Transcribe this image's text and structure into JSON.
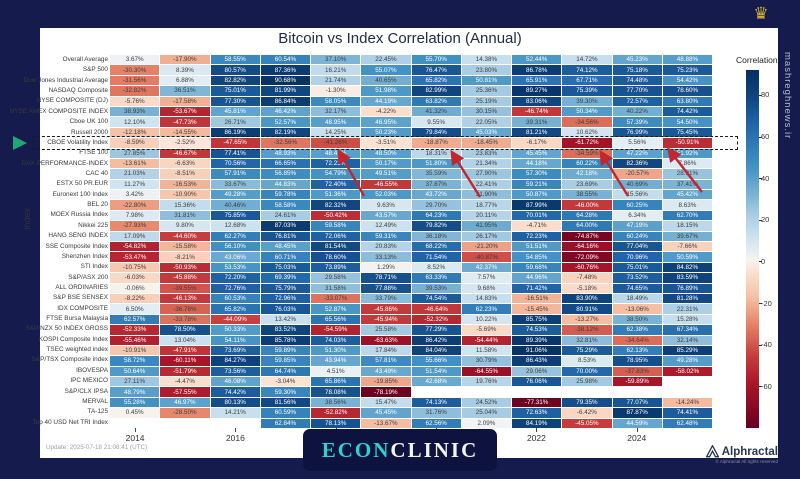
{
  "title": "Bitcoin vs Index Correlation (Annual)",
  "ylabel": "Index",
  "watermark": "mashreghnews.ir",
  "emblem_icon": "crown-icon",
  "colorbar": {
    "title": "Correlation",
    "ticks": [
      80,
      60,
      40,
      20,
      0,
      -20,
      -40,
      -60
    ],
    "vmax": 92,
    "vmin": -80
  },
  "footer": {
    "update": "Update: 2025-07-18 21:08:41 (UTC)",
    "brand_econ": "ECON",
    "brand_clinic": "CLINIC",
    "alphractal": "Alphractal",
    "alphractal_copy": "© Alphractal All rights reserved"
  },
  "chart_data": {
    "type": "heatmap",
    "x": [
      2014,
      2015,
      2016,
      2017,
      2018,
      2019,
      2020,
      2021,
      2022,
      2023,
      2024,
      2025
    ],
    "x_ticks_shown": [
      2014,
      2016,
      2018,
      2020,
      2022,
      2024
    ],
    "value_format": "percent",
    "highlight_row": "CBOE Volatility Index",
    "rows": [
      {
        "label": "Overall Average",
        "values": [
          3.67,
          -17.9,
          58.55,
          60.54,
          37.1,
          22.45,
          55.7,
          14.38,
          52.44,
          14.72,
          45.23,
          48.88
        ]
      },
      {
        "label": "S&P 500",
        "values": [
          -30.3,
          8.39,
          80.57,
          87.36,
          16.21,
          55.07,
          76.47,
          23.8,
          86.78,
          74.12,
          75.18,
          75.23
        ]
      },
      {
        "label": "Dow Jones Industrial Average",
        "values": [
          -31.56,
          6.88,
          82.82,
          90.68,
          21.74,
          40.65,
          65.82,
          50.81,
          65.91,
          67.71,
          74.48,
          54.42
        ]
      },
      {
        "label": "NASDAQ Composite",
        "values": [
          -32.82,
          36.51,
          75.01,
          81.99,
          -1.3,
          51.98,
          82.99,
          25.36,
          89.27,
          75.39,
          77.7,
          78.6
        ]
      },
      {
        "label": "NYSE COMPOSITE (DJ)",
        "values": [
          -5.76,
          -17.58,
          77.3,
          86.84,
          58.05,
          44.19,
          63.82,
          25.19,
          83.06,
          39.3,
          72.57,
          63.8
        ]
      },
      {
        "label": "NYSE AMEX COMPOSITE INDEX",
        "values": [
          38.93,
          -53.67,
          45.81,
          46.42,
          32.17,
          -4.22,
          41.32,
          30.15,
          -46.74,
          50.34,
          40.22,
          74.42
        ]
      },
      {
        "label": "Cboe UK 100",
        "values": [
          12.1,
          -47.73,
          26.71,
          52.57,
          48.95,
          46.95,
          9.55,
          22.05,
          39.31,
          -34.56,
          57.39,
          54.5
        ]
      },
      {
        "label": "Russell 2000",
        "values": [
          -12.18,
          -14.55,
          86.19,
          82.19,
          14.25,
          50.23,
          79.84,
          45.03,
          81.21,
          10.62,
          76.99,
          75.45
        ]
      },
      {
        "label": "CBOE Volatility Index",
        "values": [
          -8.59,
          -2.52,
          -47.65,
          -32.56,
          -41.26,
          -3.51,
          -18.87,
          -18.45,
          -6.17,
          -61.72,
          5.56,
          -50.91
        ]
      },
      {
        "label": "FTSE 100",
        "values": [
          27.85,
          -46.67,
          77.41,
          48.93,
          48.41,
          48.5,
          18.31,
          23.83,
          45.45,
          -34.59,
          47.22,
          51.92
        ]
      },
      {
        "label": "DAX PERFORMANCE-INDEX",
        "values": [
          -13.61,
          -6.63,
          70.56,
          66.65,
          72.23,
          50.17,
          51.8,
          21.34,
          44.18,
          60.22,
          82.36,
          7.86
        ]
      },
      {
        "label": "CAC 40",
        "values": [
          21.03,
          -8.51,
          57.91,
          56.85,
          54.79,
          49.51,
          35.59,
          27.9,
          57.3,
          42.18,
          -20.57,
          28.91
        ]
      },
      {
        "label": "ESTX 50 PR.EUR",
        "values": [
          11.27,
          -16.53,
          33.67,
          44.83,
          72.4,
          -46.55,
          37.87,
          22.41,
          59.21,
          23.69,
          40.69,
          37.41
        ]
      },
      {
        "label": "Euronext 100 Index",
        "values": [
          3.42,
          -10.9,
          49.28,
          59.78,
          51.36,
          52.03,
          43.72,
          31.9,
          50.87,
          38.55,
          15.56,
          45.42
        ]
      },
      {
        "label": "BEL 20",
        "values": [
          -22.8,
          15.36,
          40.46,
          58.58,
          82.32,
          9.63,
          29.7,
          18.77,
          87.99,
          -46.0,
          60.25,
          8.63
        ]
      },
      {
        "label": "MOEX Russia Index",
        "values": [
          7.98,
          31.81,
          75.85,
          24.61,
          -50.42,
          43.57,
          64.23,
          20.11,
          70.01,
          64.28,
          6.34,
          62.7
        ]
      },
      {
        "label": "Nikkei 225",
        "values": [
          -27.93,
          9.8,
          12.68,
          87.03,
          59.58,
          12.49,
          79.82,
          41.95,
          -4.71,
          64.0,
          47.19,
          18.15
        ]
      },
      {
        "label": "HANG SENG INDEX",
        "values": [
          17.09,
          -44.6,
          62.27,
          76.81,
          72.06,
          59.31,
          36.18,
          26.17,
          72.23,
          -74.87,
          60.24,
          39.67
        ]
      },
      {
        "label": "SSE Composite Index",
        "values": [
          -54.82,
          -15.58,
          56.1,
          48.45,
          81.54,
          20.83,
          68.22,
          -21.2,
          51.51,
          -64.16,
          77.04,
          -7.66
        ]
      },
      {
        "label": "Shenzhen Index",
        "values": [
          -53.47,
          -8.21,
          43.06,
          60.71,
          78.6,
          33.13,
          71.54,
          -40.87,
          54.85,
          -72.09,
          70.96,
          50.59
        ]
      },
      {
        "label": "STI Index",
        "values": [
          -10.75,
          -50.93,
          53.53,
          75.03,
          73.89,
          1.29,
          8.52,
          42.37,
          59.68,
          -60.76,
          75.01,
          84.82
        ]
      },
      {
        "label": "S&P/ASX 200",
        "values": [
          -6.03,
          -45.88,
          72.2,
          69.39,
          29.58,
          78.71,
          63.33,
          7.57,
          44.96,
          -7.48,
          73.52,
          83.59
        ]
      },
      {
        "label": "ALL ORDINARIES",
        "values": [
          -0.06,
          -39.55,
          72.76,
          75.79,
          31.58,
          77.88,
          39.53,
          9.68,
          71.42,
          -5.18,
          74.65,
          76.89
        ]
      },
      {
        "label": "S&P BSE SENSEX",
        "values": [
          -8.22,
          -46.13,
          60.53,
          72.96,
          -33.07,
          33.79,
          74.54,
          14.83,
          -16.51,
          83.9,
          18.49,
          81.28
        ]
      },
      {
        "label": "IDX COMPOSITE",
        "values": [
          6.5,
          -36.78,
          65.82,
          76.03,
          52.87,
          -45.86,
          -46.64,
          62.23,
          -15.45,
          80.91,
          -13.06,
          22.31
        ]
      },
      {
        "label": "FTSE Bursa Malaysia",
        "values": [
          62.57,
          -33.78,
          -44.09,
          13.42,
          65.56,
          -45.94,
          -52.32,
          10.22,
          85.75,
          -13.27,
          38.5,
          15.28
        ]
      },
      {
        "label": "S&P/NZX 50 INDEX GROSS",
        "values": [
          -52.33,
          78.5,
          50.33,
          83.52,
          -54.59,
          25.58,
          77.29,
          -5.69,
          74.53,
          -38.12,
          62.38,
          67.34
        ]
      },
      {
        "label": "KOSPI Composite Index",
        "values": [
          -55.46,
          13.04,
          54.11,
          85.78,
          74.03,
          -63.63,
          86.42,
          -54.44,
          89.39,
          32.81,
          -34.64,
          32.14
        ]
      },
      {
        "label": "TSEC weighted index",
        "values": [
          -10.91,
          -47.91,
          73.69,
          59.89,
          51.3,
          17.84,
          84.04,
          11.58,
          91.06,
          75.29,
          62.13,
          85.29
        ]
      },
      {
        "label": "S&P/TSX Composite index",
        "values": [
          58.72,
          -60.11,
          84.27,
          59.85,
          43.94,
          57.81,
          55.66,
          30.79,
          86.43,
          8.53,
          78.95,
          49.28
        ]
      },
      {
        "label": "IBOVESPA",
        "values": [
          50.64,
          -51.79,
          73.56,
          64.74,
          4.51,
          43.49,
          51.54,
          -64.55,
          29.06,
          70.0,
          -37.83,
          -58.02
        ]
      },
      {
        "label": "IPC MEXICO",
        "values": [
          27.11,
          -4.47,
          46.08,
          -3.04,
          65.86,
          -19.85,
          42.68,
          19.76,
          76.06,
          25.98,
          -59.89,
          null
        ]
      },
      {
        "label": "S&P/CLX IPSA",
        "values": [
          48.79,
          -57.55,
          74.42,
          59.3,
          78.08,
          -78.19,
          null,
          null,
          null,
          null,
          null,
          null
        ]
      },
      {
        "label": "MERVAL",
        "values": [
          55.28,
          46.97,
          80.13,
          81.56,
          38.56,
          15.47,
          74.13,
          24.52,
          -77.31,
          79.35,
          77.07,
          -14.24
        ]
      },
      {
        "label": "TA-125",
        "values": [
          0.45,
          -28.5,
          14.21,
          60.59,
          -52.82,
          45.45,
          31.76,
          25.04,
          72.63,
          -6.42,
          87.87,
          74.41
        ]
      },
      {
        "label": "Top 40 USD Net TRI Index",
        "values": [
          null,
          null,
          null,
          62.84,
          78.13,
          -13.67,
          62.56,
          2.09,
          84.19,
          -45.05,
          44.59,
          62.48
        ]
      }
    ]
  }
}
